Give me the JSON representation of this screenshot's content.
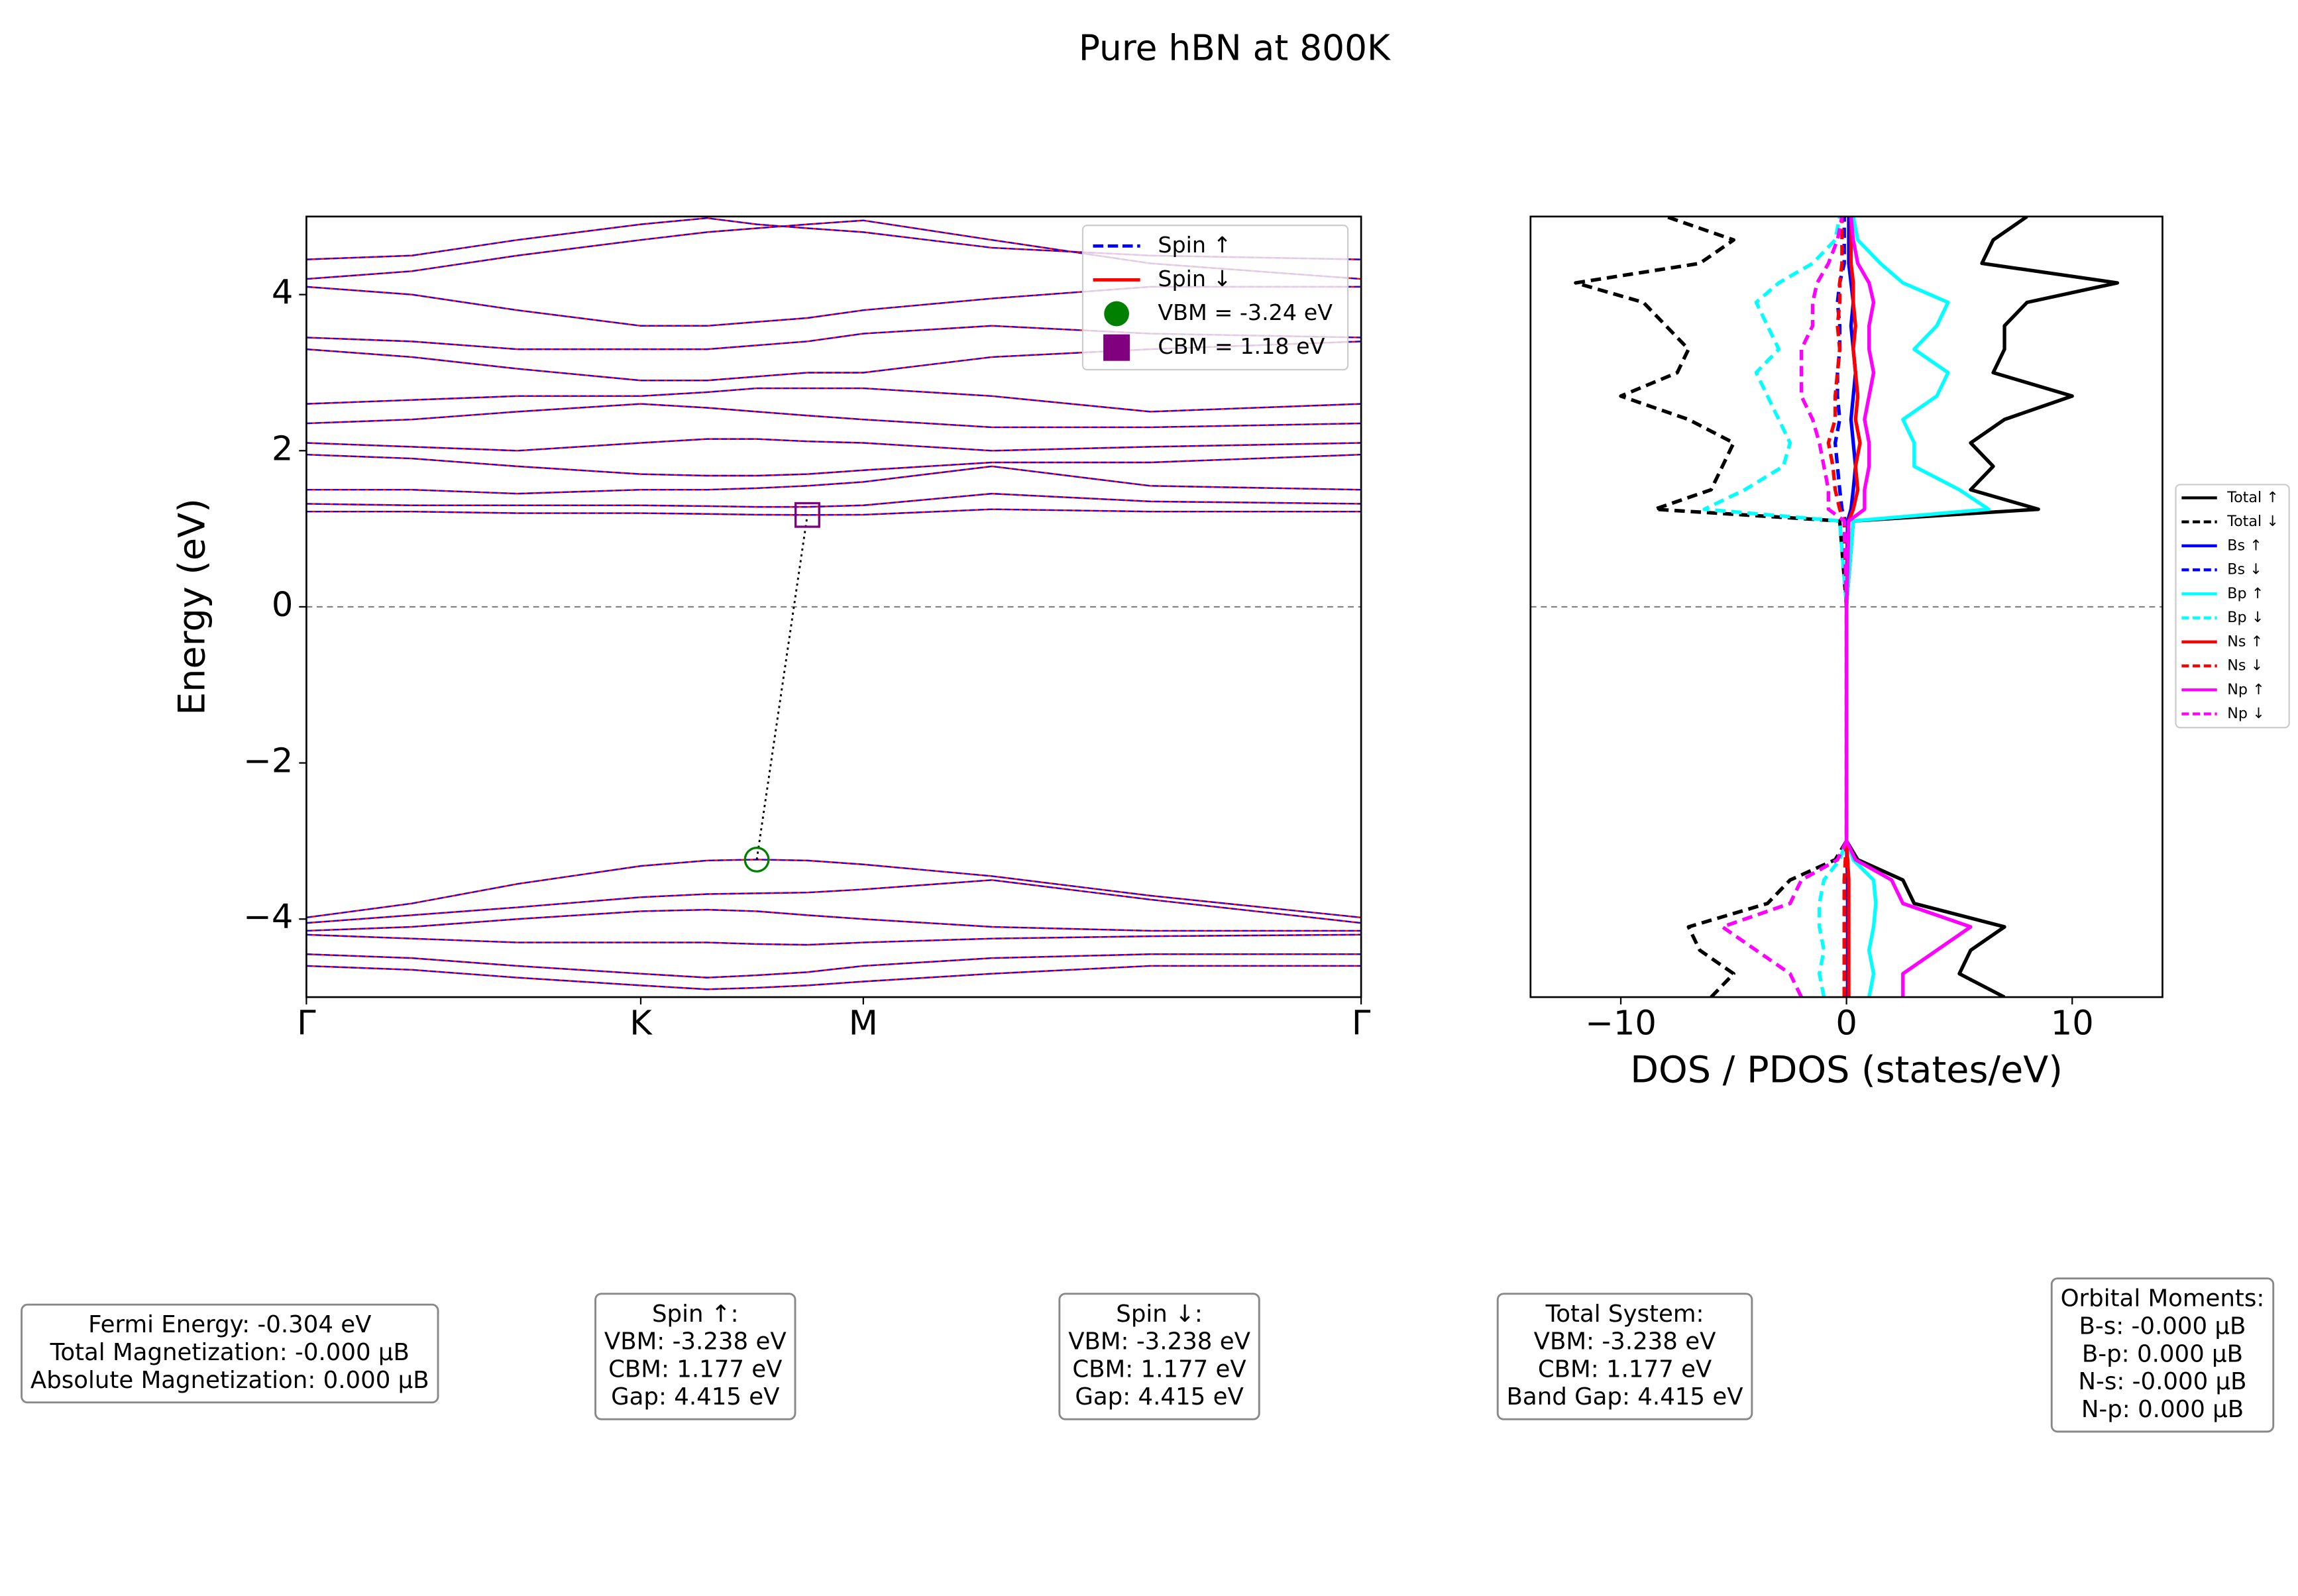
{
  "title": "Pure hBN at 800K",
  "chart_data": [
    {
      "type": "line",
      "ylabel": "Energy (eV)",
      "x": [
        0,
        0.1,
        0.2,
        0.317,
        0.38,
        0.427,
        0.475,
        0.528,
        0.65,
        0.8,
        1
      ],
      "xlim": [
        0,
        1
      ],
      "xticks": [
        {
          "value": 0,
          "label": "Γ"
        },
        {
          "value": 0.317,
          "label": "K"
        },
        {
          "value": 0.528,
          "label": "M"
        },
        {
          "value": 1,
          "label": "Γ"
        }
      ],
      "ylim": [
        -5,
        5
      ],
      "yticks": [
        {
          "value": -4,
          "label": "−4"
        },
        {
          "value": -2,
          "label": "−2"
        },
        0,
        2,
        4
      ],
      "hline": 0,
      "spins": [
        {
          "name": "Spin ↑",
          "color": "#0000ff",
          "dash": true
        },
        {
          "name": "Spin ↓",
          "color": "#ff0000",
          "dash": false
        }
      ],
      "bands": [
        [
          -3.98,
          -3.8,
          -3.55,
          -3.32,
          -3.25,
          -3.238,
          -3.25,
          -3.3,
          -3.45,
          -3.7,
          -3.98
        ],
        [
          -4.05,
          -3.95,
          -3.85,
          -3.72,
          -3.68,
          -3.67,
          -3.66,
          -3.62,
          -3.5,
          -3.75,
          -4.05
        ],
        [
          -4.15,
          -4.1,
          -4.0,
          -3.9,
          -3.88,
          -3.9,
          -3.95,
          -4.0,
          -4.1,
          -4.15,
          -4.15
        ],
        [
          -4.2,
          -4.25,
          -4.3,
          -4.3,
          -4.3,
          -4.32,
          -4.33,
          -4.3,
          -4.25,
          -4.22,
          -4.2
        ],
        [
          -4.45,
          -4.5,
          -4.6,
          -4.7,
          -4.75,
          -4.72,
          -4.68,
          -4.6,
          -4.5,
          -4.45,
          -4.45
        ],
        [
          -4.6,
          -4.65,
          -4.75,
          -4.85,
          -4.9,
          -4.88,
          -4.85,
          -4.8,
          -4.7,
          -4.6,
          -4.6
        ],
        [
          1.22,
          1.22,
          1.2,
          1.2,
          1.19,
          1.18,
          1.177,
          1.18,
          1.25,
          1.22,
          1.22
        ],
        [
          1.32,
          1.3,
          1.3,
          1.3,
          1.29,
          1.28,
          1.28,
          1.3,
          1.45,
          1.35,
          1.32
        ],
        [
          1.5,
          1.5,
          1.45,
          1.5,
          1.5,
          1.52,
          1.55,
          1.6,
          1.8,
          1.55,
          1.5
        ],
        [
          1.95,
          1.9,
          1.8,
          1.7,
          1.68,
          1.68,
          1.7,
          1.75,
          1.85,
          1.85,
          1.95
        ],
        [
          2.1,
          2.05,
          2.0,
          2.1,
          2.15,
          2.15,
          2.12,
          2.1,
          2.0,
          2.05,
          2.1
        ],
        [
          2.35,
          2.4,
          2.5,
          2.6,
          2.55,
          2.5,
          2.45,
          2.4,
          2.3,
          2.3,
          2.35
        ],
        [
          2.6,
          2.65,
          2.7,
          2.7,
          2.75,
          2.8,
          2.8,
          2.8,
          2.7,
          2.5,
          2.6
        ],
        [
          3.3,
          3.2,
          3.05,
          2.9,
          2.9,
          2.95,
          3.0,
          3.0,
          3.2,
          3.3,
          3.4
        ],
        [
          3.45,
          3.4,
          3.3,
          3.3,
          3.3,
          3.35,
          3.4,
          3.5,
          3.6,
          3.5,
          3.45
        ],
        [
          4.1,
          4.0,
          3.8,
          3.6,
          3.6,
          3.65,
          3.7,
          3.8,
          3.95,
          4.1,
          4.1
        ],
        [
          4.2,
          4.3,
          4.5,
          4.7,
          4.8,
          4.85,
          4.9,
          4.95,
          4.7,
          4.4,
          4.2
        ],
        [
          4.45,
          4.5,
          4.7,
          4.9,
          4.98,
          4.9,
          4.85,
          4.8,
          4.6,
          4.5,
          4.45
        ]
      ],
      "vbm": {
        "x": 0.427,
        "y": -3.238,
        "label": "VBM = -3.24 eV",
        "color": "#008000"
      },
      "cbm": {
        "x": 0.475,
        "y": 1.177,
        "label": "CBM = 1.18 eV",
        "color": "#800080"
      },
      "legend": "upper right"
    },
    {
      "type": "line",
      "orientation": "horizontal",
      "xlabel": "DOS / PDOS (states/eV)",
      "energy": [
        -5,
        -4.7,
        -4.4,
        -4.1,
        -3.8,
        -3.5,
        -3.24,
        -3.0,
        0,
        1.1,
        1.25,
        1.5,
        1.8,
        2.1,
        2.4,
        2.7,
        3.0,
        3.3,
        3.6,
        3.9,
        4.15,
        4.4,
        4.7,
        5.0
      ],
      "xlim": [
        -14,
        14
      ],
      "xticks": [
        {
          "value": -10,
          "label": "−10"
        },
        0,
        10
      ],
      "ylim": [
        -5,
        5
      ],
      "hline": 0,
      "legend": "outside right",
      "series": [
        {
          "name": "Total ↑",
          "color": "#000000",
          "dash": false,
          "values": [
            7,
            5,
            5.5,
            7,
            3,
            2.5,
            0.5,
            0,
            0,
            0.3,
            8.5,
            5.5,
            6.5,
            5.5,
            7,
            10,
            6.5,
            7,
            7,
            8,
            12,
            6,
            6.5,
            8
          ]
        },
        {
          "name": "Total ↓",
          "color": "#000000",
          "dash": true,
          "values": [
            -6,
            -5,
            -6.5,
            -7,
            -3.5,
            -2.5,
            -0.5,
            0,
            0,
            -0.3,
            -8.5,
            -6,
            -5.5,
            -5,
            -7,
            -10,
            -7.5,
            -7,
            -8,
            -9,
            -12,
            -6.5,
            -5,
            -8
          ]
        },
        {
          "name": "Bs ↑",
          "color": "#0000ff",
          "dash": false,
          "values": [
            0.05,
            0.05,
            0.05,
            0.05,
            0.05,
            0.05,
            0.02,
            0,
            0,
            0.05,
            0.2,
            0.3,
            0.4,
            0.3,
            0.2,
            0.3,
            0.4,
            0.3,
            0.2,
            0.3,
            0.2,
            0.1,
            0.1,
            0.1
          ]
        },
        {
          "name": "Bs ↓",
          "color": "#0000ff",
          "dash": true,
          "values": [
            -0.05,
            -0.05,
            -0.05,
            -0.05,
            -0.05,
            -0.05,
            -0.02,
            0,
            0,
            -0.05,
            -0.2,
            -0.3,
            -0.4,
            -0.5,
            -0.3,
            -0.4,
            -0.4,
            -0.3,
            -0.3,
            -0.4,
            -0.3,
            -0.1,
            -0.1,
            -0.1
          ]
        },
        {
          "name": "Bp ↑",
          "color": "#00ffff",
          "dash": false,
          "values": [
            1,
            1.2,
            1,
            1.2,
            1.3,
            1.2,
            0.3,
            0,
            0,
            0.3,
            6.3,
            5,
            3,
            3,
            2.5,
            4,
            4.5,
            3,
            4,
            4.5,
            2.5,
            1.5,
            0.5,
            0.3
          ]
        },
        {
          "name": "Bp ↓",
          "color": "#00ffff",
          "dash": true,
          "values": [
            -1,
            -1.2,
            -1,
            -1.2,
            -1.2,
            -1,
            -0.3,
            0,
            0,
            -0.3,
            -6.3,
            -4.5,
            -2.8,
            -2.5,
            -3,
            -3.5,
            -4,
            -3,
            -3.5,
            -4,
            -3,
            -1.5,
            -0.5,
            -0.3
          ]
        },
        {
          "name": "Ns ↑",
          "color": "#ff0000",
          "dash": false,
          "values": [
            0.1,
            0.1,
            0.1,
            0.1,
            0.1,
            0.1,
            0.05,
            0,
            0,
            0.1,
            0.3,
            0.5,
            0.4,
            0.6,
            0.4,
            0.5,
            0.4,
            0.3,
            0.4,
            0.3,
            0.3,
            0.2,
            0.2,
            0.2
          ]
        },
        {
          "name": "Ns ↓",
          "color": "#ff0000",
          "dash": true,
          "values": [
            -0.1,
            -0.1,
            -0.1,
            -0.1,
            -0.1,
            -0.1,
            -0.05,
            0,
            0,
            -0.1,
            -0.3,
            -0.5,
            -0.6,
            -0.8,
            -0.5,
            -0.5,
            -0.4,
            -0.3,
            -0.4,
            -0.3,
            -0.3,
            -0.2,
            -0.2,
            -0.2
          ]
        },
        {
          "name": "Np ↑",
          "color": "#ff00ff",
          "dash": false,
          "values": [
            2.5,
            2.5,
            4,
            5.5,
            2.5,
            2,
            0.4,
            0,
            0,
            0.1,
            0.8,
            0.8,
            1,
            1,
            0.8,
            1,
            1.2,
            1,
            1,
            1.2,
            1,
            0.5,
            0.3,
            0.2
          ]
        },
        {
          "name": "Np ↓",
          "color": "#ff00ff",
          "dash": true,
          "values": [
            -2,
            -2.5,
            -4,
            -5.5,
            -2.5,
            -2,
            -0.4,
            0,
            0,
            -0.1,
            -0.8,
            -0.8,
            -1,
            -1.2,
            -1.5,
            -2,
            -2,
            -2,
            -1.5,
            -1.5,
            -1.3,
            -0.8,
            -0.4,
            -0.2
          ]
        }
      ]
    }
  ],
  "info_boxes": [
    [
      "Fermi Energy: -0.304 eV",
      "Total Magnetization: -0.000 μB",
      "Absolute Magnetization: 0.000 μB"
    ],
    [
      "Spin ↑:",
      "VBM: -3.238 eV",
      "CBM: 1.177 eV",
      "Gap: 4.415 eV"
    ],
    [
      "Spin ↓:",
      "VBM: -3.238 eV",
      "CBM: 1.177 eV",
      "Gap: 4.415 eV"
    ],
    [
      "Total System:",
      "VBM: -3.238 eV",
      "CBM: 1.177 eV",
      "Band Gap: 4.415 eV"
    ],
    [
      "Orbital Moments:",
      "B-s: -0.000 μB",
      "B-p: 0.000 μB",
      "N-s: -0.000 μB",
      "N-p: 0.000 μB"
    ]
  ]
}
